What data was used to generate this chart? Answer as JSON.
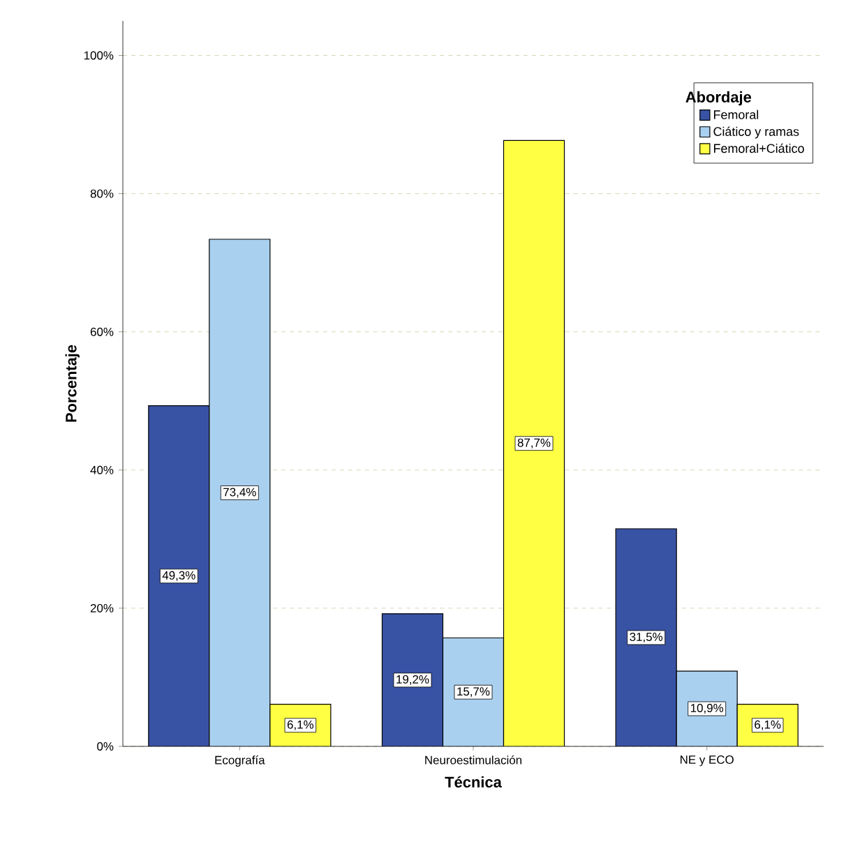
{
  "chart_data": {
    "type": "bar",
    "xlabel": "Técnica",
    "ylabel": "Porcentaje",
    "legend_title": "Abordaje",
    "legend": "top right",
    "grid": "y",
    "categories": [
      "Ecografía",
      "Neuroestimulación",
      "NE y ECO"
    ],
    "series": [
      {
        "name": "Femoral",
        "color": "#3953a4",
        "values": [
          49.3,
          19.2,
          31.5
        ],
        "value_labels": [
          "49,3%",
          "19,2%",
          "31,5%"
        ]
      },
      {
        "name": "Ciático y ramas",
        "color": "#aad0ef",
        "values": [
          73.4,
          15.7,
          10.9
        ],
        "value_labels": [
          "73,4%",
          "15,7%",
          "10,9%"
        ]
      },
      {
        "name": "Femoral+Ciático",
        "color": "#ffff44",
        "values": [
          6.1,
          87.7,
          6.1
        ],
        "value_labels": [
          "6,1%",
          "87,7%",
          "6,1%"
        ]
      }
    ],
    "ylim": [
      0,
      105
    ],
    "yticks": [
      {
        "value": 0,
        "label": "0%"
      },
      {
        "value": 20,
        "label": "20%"
      },
      {
        "value": 40,
        "label": "40%"
      },
      {
        "value": 60,
        "label": "60%"
      },
      {
        "value": 80,
        "label": "80%"
      },
      {
        "value": 100,
        "label": "100%"
      }
    ]
  }
}
